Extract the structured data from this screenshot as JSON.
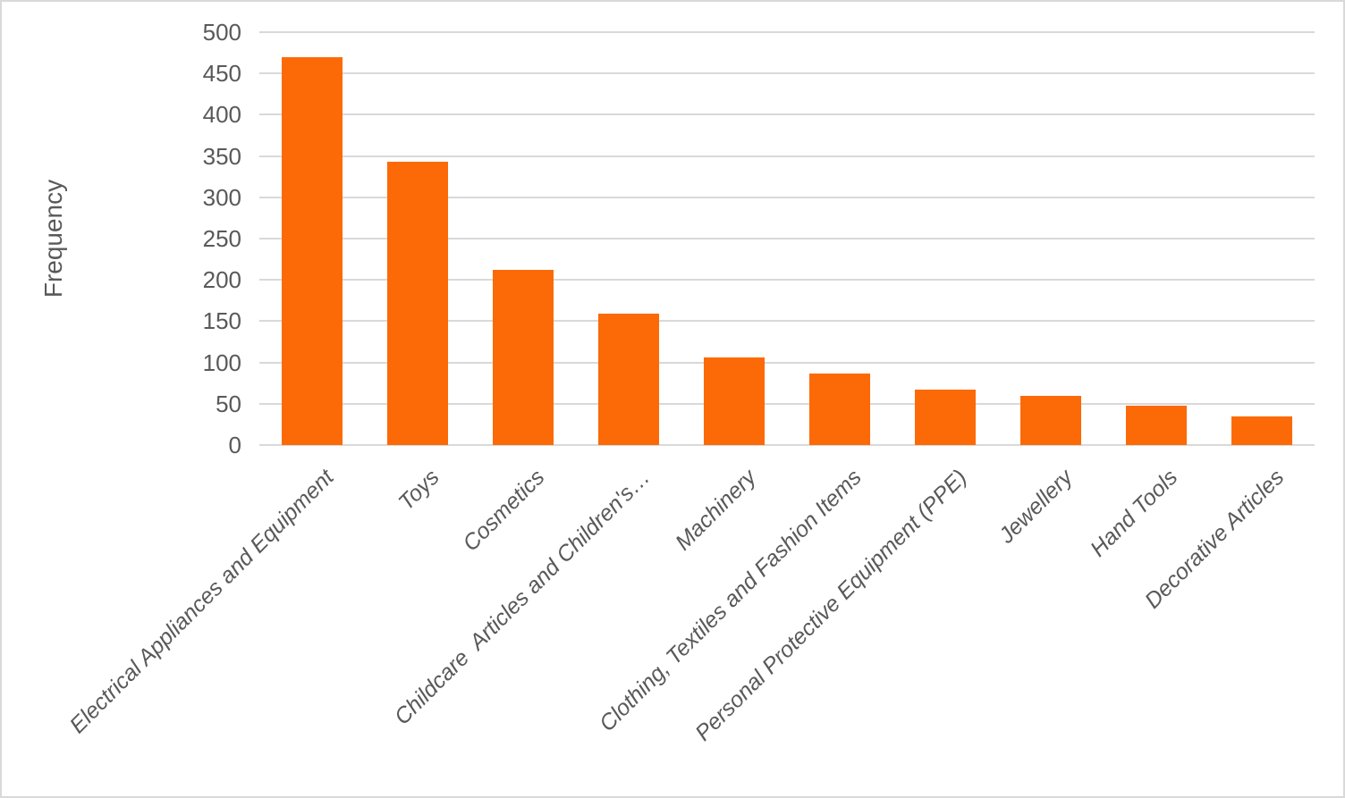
{
  "colors": {
    "bar": "#FB6A07",
    "grid": "#D9D9D9",
    "text": "#595959",
    "border": "#D9D9D9",
    "background": "#FFFFFF"
  },
  "chart_data": {
    "type": "bar",
    "title": "",
    "categories": [
      "Electrical Appliances and Equipment",
      "Toys",
      "Cosmetics",
      "Childcare  Articles and Children's…",
      "Machinery",
      "Clothing, Textiles and Fashion Items",
      "Personal Protective Equipment (PPE)",
      "Jewellery",
      "Hand Tools",
      "Decorative Articles"
    ],
    "values": [
      470,
      343,
      212,
      159,
      106,
      87,
      67,
      60,
      48,
      35
    ],
    "xlabel": "",
    "ylabel": "Frequency",
    "ylim": [
      0,
      500
    ],
    "ytick_step": 50,
    "ytick_labels": [
      "0",
      "50",
      "100",
      "150",
      "200",
      "250",
      "300",
      "350",
      "400",
      "450",
      "500"
    ],
    "grid": "horizontal-light",
    "legend": "none",
    "bar_color": "#FB6A07",
    "category_label_style": "italic, rotated 45deg"
  }
}
